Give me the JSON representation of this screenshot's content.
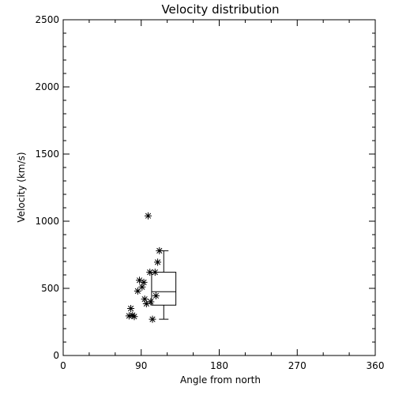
{
  "chart_data": {
    "type": "scatter",
    "title": "Velocity distribution",
    "xlabel": "Angle from north",
    "ylabel": "Velocity (km/s)",
    "xlim": [
      0,
      360
    ],
    "ylim": [
      0,
      2500
    ],
    "xticks": [
      "0",
      "90",
      "180",
      "270",
      "360"
    ],
    "yticks": [
      "0",
      "500",
      "1000",
      "1500",
      "2000",
      "2500"
    ],
    "xtick_values": [
      0,
      90,
      180,
      270,
      360
    ],
    "ytick_values": [
      0,
      500,
      1000,
      1500,
      2000,
      2500
    ],
    "grid": false,
    "marker": "asterisk",
    "points": [
      {
        "x": 76,
        "y": 295
      },
      {
        "x": 78,
        "y": 350
      },
      {
        "x": 80,
        "y": 300
      },
      {
        "x": 82,
        "y": 290
      },
      {
        "x": 86,
        "y": 480
      },
      {
        "x": 88,
        "y": 560
      },
      {
        "x": 91,
        "y": 510
      },
      {
        "x": 93,
        "y": 545
      },
      {
        "x": 94,
        "y": 420
      },
      {
        "x": 96,
        "y": 385
      },
      {
        "x": 98,
        "y": 1040
      },
      {
        "x": 100,
        "y": 620
      },
      {
        "x": 101,
        "y": 400
      },
      {
        "x": 103,
        "y": 270
      },
      {
        "x": 106,
        "y": 620
      },
      {
        "x": 107,
        "y": 445
      },
      {
        "x": 109,
        "y": 695
      },
      {
        "x": 111,
        "y": 780
      }
    ],
    "boxplot": {
      "x_left": 102,
      "x_right": 130,
      "q1": 375,
      "median": 475,
      "q3": 620,
      "whisker_low": 270,
      "whisker_high": 780
    }
  }
}
